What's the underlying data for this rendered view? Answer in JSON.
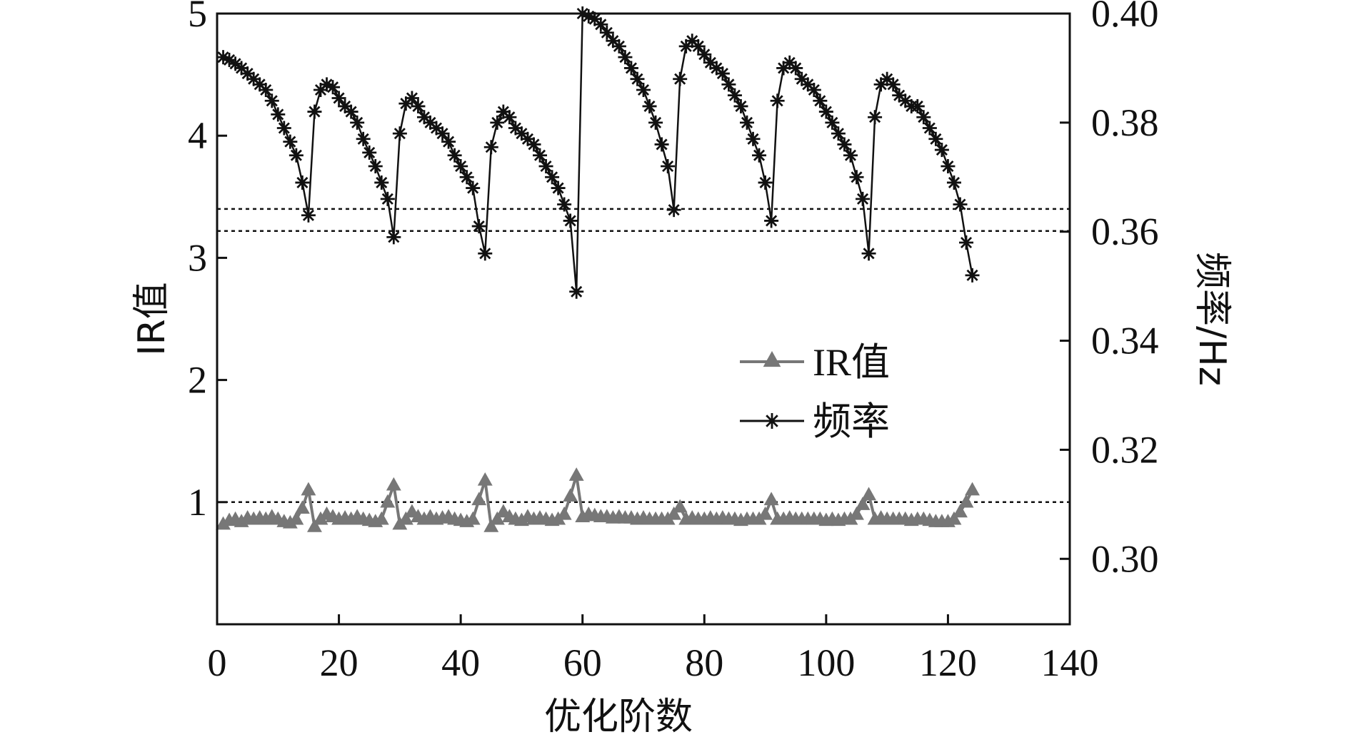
{
  "chart_data": {
    "type": "line",
    "xlabel": "优化阶数",
    "ylabel_left": "IR值",
    "ylabel_right": "频率/Hz",
    "xlim": [
      0,
      140
    ],
    "ylim_left": [
      0.0,
      5.0
    ],
    "ylim_right": [
      0.288,
      0.4
    ],
    "x_ticks": [
      0,
      20,
      40,
      60,
      80,
      100,
      120,
      140
    ],
    "y_ticks_left": [
      1,
      2,
      3,
      4,
      5
    ],
    "y_ticks_right": [
      "0.30",
      "0.32",
      "0.34",
      "0.36",
      "0.38",
      "0.40"
    ],
    "grid": false,
    "legend_position": "center",
    "reference_lines": [
      {
        "axis": "left",
        "value": 3.4
      },
      {
        "axis": "left",
        "value": 3.22
      },
      {
        "axis": "left",
        "value": 1.0
      }
    ],
    "series": [
      {
        "name": "IR值",
        "axis": "left",
        "marker": "triangle",
        "color": "#777777",
        "x": [
          1,
          2,
          3,
          4,
          5,
          6,
          7,
          8,
          9,
          10,
          11,
          12,
          13,
          14,
          15,
          16,
          17,
          18,
          19,
          20,
          21,
          22,
          23,
          24,
          25,
          26,
          27,
          28,
          29,
          30,
          31,
          32,
          33,
          34,
          35,
          36,
          37,
          38,
          39,
          40,
          41,
          42,
          43,
          44,
          45,
          46,
          47,
          48,
          49,
          50,
          51,
          52,
          53,
          54,
          55,
          56,
          57,
          58,
          59,
          60,
          61,
          62,
          63,
          64,
          65,
          66,
          67,
          68,
          69,
          70,
          71,
          72,
          73,
          74,
          75,
          76,
          77,
          78,
          79,
          80,
          81,
          82,
          83,
          84,
          85,
          86,
          87,
          88,
          89,
          90,
          91,
          92,
          93,
          94,
          95,
          96,
          97,
          98,
          99,
          100,
          101,
          102,
          103,
          104,
          105,
          106,
          107,
          108,
          109,
          110,
          111,
          112,
          113,
          114,
          115,
          116,
          117,
          118,
          119,
          120,
          121,
          122,
          123,
          124
        ],
        "y": [
          0.82,
          0.85,
          0.86,
          0.84,
          0.87,
          0.86,
          0.87,
          0.86,
          0.88,
          0.86,
          0.84,
          0.83,
          0.86,
          0.95,
          1.1,
          0.8,
          0.86,
          0.9,
          0.88,
          0.86,
          0.87,
          0.86,
          0.88,
          0.86,
          0.85,
          0.84,
          0.86,
          1.0,
          1.14,
          0.82,
          0.86,
          0.92,
          0.88,
          0.86,
          0.88,
          0.86,
          0.87,
          0.88,
          0.86,
          0.85,
          0.84,
          0.86,
          1.02,
          1.18,
          0.8,
          0.86,
          0.92,
          0.88,
          0.86,
          0.85,
          0.88,
          0.86,
          0.87,
          0.86,
          0.85,
          0.86,
          0.9,
          1.05,
          1.22,
          0.88,
          0.9,
          0.89,
          0.88,
          0.88,
          0.87,
          0.88,
          0.87,
          0.87,
          0.86,
          0.87,
          0.86,
          0.86,
          0.86,
          0.86,
          0.9,
          0.96,
          0.86,
          0.87,
          0.86,
          0.86,
          0.87,
          0.86,
          0.87,
          0.86,
          0.86,
          0.85,
          0.86,
          0.86,
          0.86,
          0.9,
          1.02,
          0.86,
          0.86,
          0.87,
          0.86,
          0.86,
          0.86,
          0.86,
          0.86,
          0.85,
          0.86,
          0.85,
          0.86,
          0.86,
          0.9,
          0.98,
          1.06,
          0.86,
          0.87,
          0.86,
          0.86,
          0.86,
          0.86,
          0.85,
          0.86,
          0.86,
          0.85,
          0.84,
          0.84,
          0.84,
          0.86,
          0.92,
          1.0,
          1.1
        ]
      },
      {
        "name": "频率",
        "axis": "right",
        "marker": "asterisk",
        "color": "#111111",
        "x": [
          1,
          2,
          3,
          4,
          5,
          6,
          7,
          8,
          9,
          10,
          11,
          12,
          13,
          14,
          15,
          16,
          17,
          18,
          19,
          20,
          21,
          22,
          23,
          24,
          25,
          26,
          27,
          28,
          29,
          30,
          31,
          32,
          33,
          34,
          35,
          36,
          37,
          38,
          39,
          40,
          41,
          42,
          43,
          44,
          45,
          46,
          47,
          48,
          49,
          50,
          51,
          52,
          53,
          54,
          55,
          56,
          57,
          58,
          59,
          60,
          61,
          62,
          63,
          64,
          65,
          66,
          67,
          68,
          69,
          70,
          71,
          72,
          73,
          74,
          75,
          76,
          77,
          78,
          79,
          80,
          81,
          82,
          83,
          84,
          85,
          86,
          87,
          88,
          89,
          90,
          91,
          92,
          93,
          94,
          95,
          96,
          97,
          98,
          99,
          100,
          101,
          102,
          103,
          104,
          105,
          106,
          107,
          108,
          109,
          110,
          111,
          112,
          113,
          114,
          115,
          116,
          117,
          118,
          119,
          120,
          121,
          122,
          123,
          124
        ],
        "y": [
          0.392,
          0.3915,
          0.3908,
          0.39,
          0.389,
          0.388,
          0.387,
          0.386,
          0.384,
          0.3815,
          0.379,
          0.3765,
          0.374,
          0.369,
          0.363,
          0.382,
          0.386,
          0.387,
          0.3865,
          0.3845,
          0.383,
          0.382,
          0.38,
          0.377,
          0.3745,
          0.372,
          0.369,
          0.366,
          0.359,
          0.378,
          0.3835,
          0.3845,
          0.383,
          0.381,
          0.38,
          0.379,
          0.378,
          0.3765,
          0.374,
          0.372,
          0.37,
          0.368,
          0.361,
          0.356,
          0.3755,
          0.38,
          0.382,
          0.381,
          0.379,
          0.378,
          0.377,
          0.376,
          0.374,
          0.372,
          0.37,
          0.368,
          0.365,
          0.362,
          0.349,
          0.4,
          0.3995,
          0.399,
          0.398,
          0.3965,
          0.395,
          0.394,
          0.392,
          0.39,
          0.388,
          0.386,
          0.383,
          0.38,
          0.376,
          0.372,
          0.364,
          0.388,
          0.394,
          0.395,
          0.394,
          0.3925,
          0.391,
          0.39,
          0.389,
          0.387,
          0.385,
          0.383,
          0.38,
          0.377,
          0.374,
          0.369,
          0.362,
          0.384,
          0.39,
          0.391,
          0.39,
          0.388,
          0.387,
          0.386,
          0.384,
          0.382,
          0.38,
          0.378,
          0.376,
          0.374,
          0.37,
          0.366,
          0.356,
          0.381,
          0.387,
          0.388,
          0.387,
          0.385,
          0.384,
          0.383,
          0.383,
          0.381,
          0.379,
          0.377,
          0.375,
          0.372,
          0.369,
          0.365,
          0.358,
          0.352
        ]
      }
    ]
  }
}
